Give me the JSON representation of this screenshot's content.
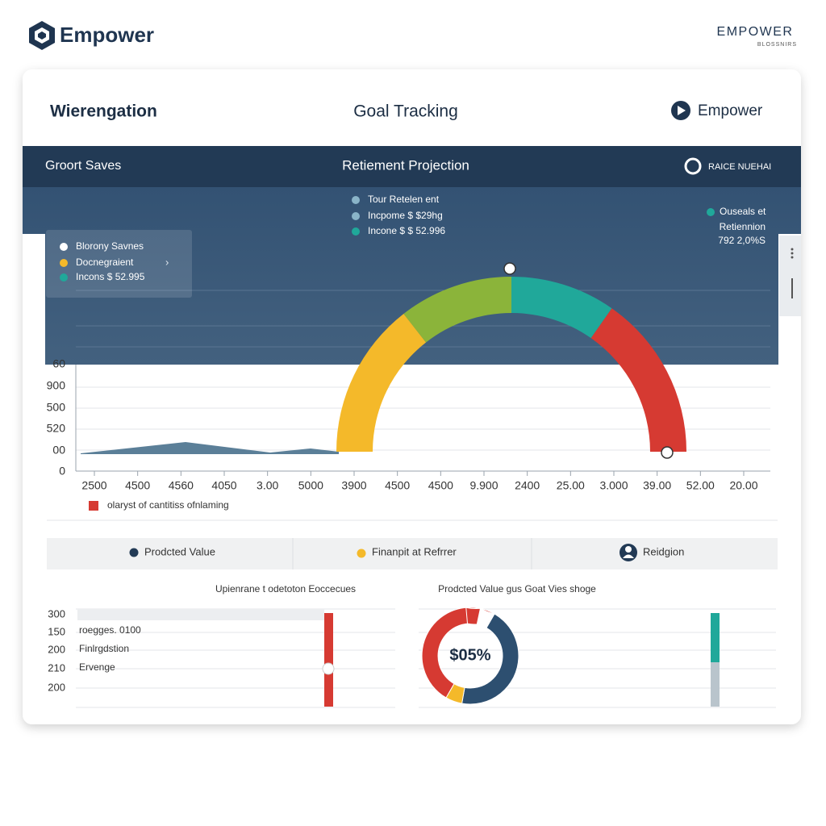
{
  "brand": {
    "name": "Empower",
    "corner_title": "EMPOWER",
    "corner_subtitle": "BLOSSNIRS"
  },
  "header": {
    "left": "Wierengation",
    "center": "Goal Tracking",
    "right": "Empower"
  },
  "toolbar": {
    "left": "Groort Saves",
    "center": "Retiement Projection",
    "right": "RAICE NUEHAI"
  },
  "legend_left": [
    "Blorony Savnes",
    "Docnegraient",
    "Incons $ 52.995"
  ],
  "legend_center": [
    "Tour Retelen ent",
    "Incpome $ $29hg",
    "Incone $ $ 52.996"
  ],
  "legend_right": [
    "Ouseals et",
    "Retiennion",
    "792 2,0%S"
  ],
  "main_chart": {
    "y_labels": [
      "60",
      "900",
      "500",
      "520",
      "00",
      "0"
    ],
    "x_labels": [
      "2500",
      "4500",
      "4560",
      "4050",
      "3.00",
      "5000",
      "3900",
      "4500",
      "4500",
      "9.900",
      "2400",
      "25.00",
      "3.000",
      "39.00",
      "52.00",
      "20.00"
    ],
    "legend": "olaryst of cantitiss ofnlaming"
  },
  "tabs": [
    "Prodcted Value",
    "Finanpit at Refrrer",
    "Reidgion"
  ],
  "bottom_left": {
    "title": "Upienrane t odetoton Eoccecues",
    "y_labels": [
      "300",
      "150",
      "200",
      "210",
      "200"
    ],
    "labels": [
      "roegges. 0100",
      "Finlrgdstion",
      "Ervenge"
    ]
  },
  "bottom_right": {
    "title": "Prodcted Value gus Goat Vies shoge",
    "center_label": "$05%"
  }
}
